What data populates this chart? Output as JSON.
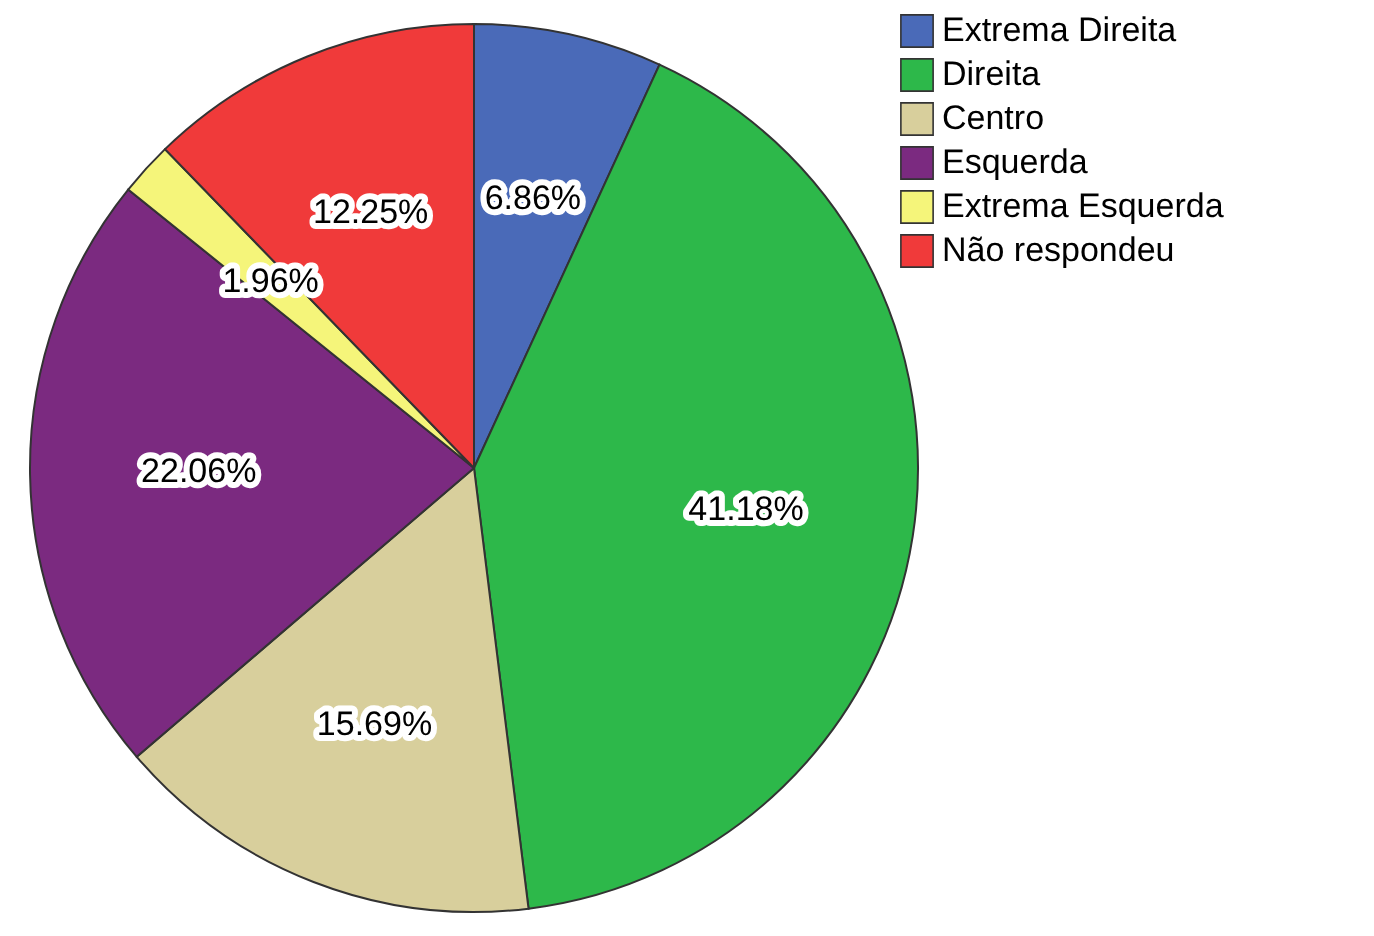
{
  "chart_data": {
    "type": "pie",
    "categories": [
      "Extrema Direita",
      "Direita",
      "Centro",
      "Esquerda",
      "Extrema Esquerda",
      "Não respondeu"
    ],
    "values": [
      6.86,
      41.18,
      15.69,
      22.06,
      1.96,
      12.25
    ],
    "colors": [
      "#4a6ab8",
      "#2db84a",
      "#d8cf9c",
      "#7b2a80",
      "#f5f57a",
      "#f03a3a"
    ],
    "value_labels": [
      "6.86%",
      "41.18%",
      "15.69%",
      "22.06%",
      "1.96%",
      "12.25%"
    ],
    "legend": "top right"
  }
}
